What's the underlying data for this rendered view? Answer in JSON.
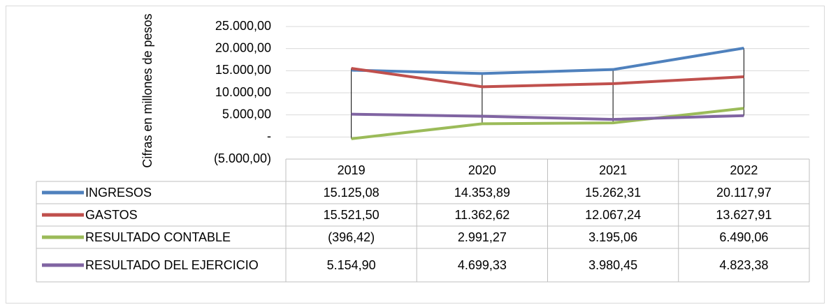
{
  "chart_data": {
    "type": "line",
    "y_label": "Cifras en millones de pesos",
    "categories": [
      "2019",
      "2020",
      "2021",
      "2022"
    ],
    "series": [
      {
        "name": "INGRESOS",
        "color": "#4f81bd",
        "values": [
          15125.08,
          14353.89,
          15262.31,
          20117.97
        ],
        "value_labels": [
          "15.125,08",
          "14.353,89",
          "15.262,31",
          "20.117,97"
        ]
      },
      {
        "name": "GASTOS",
        "color": "#c0504d",
        "values": [
          15521.5,
          11362.62,
          12067.24,
          13627.91
        ],
        "value_labels": [
          "15.521,50",
          "11.362,62",
          "12.067,24",
          "13.627,91"
        ]
      },
      {
        "name": "RESULTADO CONTABLE",
        "color": "#9bbb59",
        "values": [
          -396.42,
          2991.27,
          3195.06,
          6490.06
        ],
        "value_labels": [
          "(396,42)",
          "2.991,27",
          "3.195,06",
          "6.490,06"
        ]
      },
      {
        "name": "RESULTADO DEL EJERCICIO",
        "color": "#8064a2",
        "values": [
          5154.9,
          4699.33,
          3980.45,
          4823.38
        ],
        "value_labels": [
          "5.154,90",
          "4.699,33",
          "3.980,45",
          "4.823,38"
        ]
      }
    ],
    "ylim": [
      -5000,
      25000
    ],
    "yticks": [
      {
        "value": -5000,
        "label": "(5.000,00)"
      },
      {
        "value": 0,
        "label": "-"
      },
      {
        "value": 5000,
        "label": "5.000,00"
      },
      {
        "value": 10000,
        "label": "10.000,00"
      },
      {
        "value": 15000,
        "label": "15.000,00"
      },
      {
        "value": 20000,
        "label": "20.000,00"
      },
      {
        "value": 25000,
        "label": "25.000,00"
      }
    ],
    "grid": true,
    "drop_lines": true
  }
}
